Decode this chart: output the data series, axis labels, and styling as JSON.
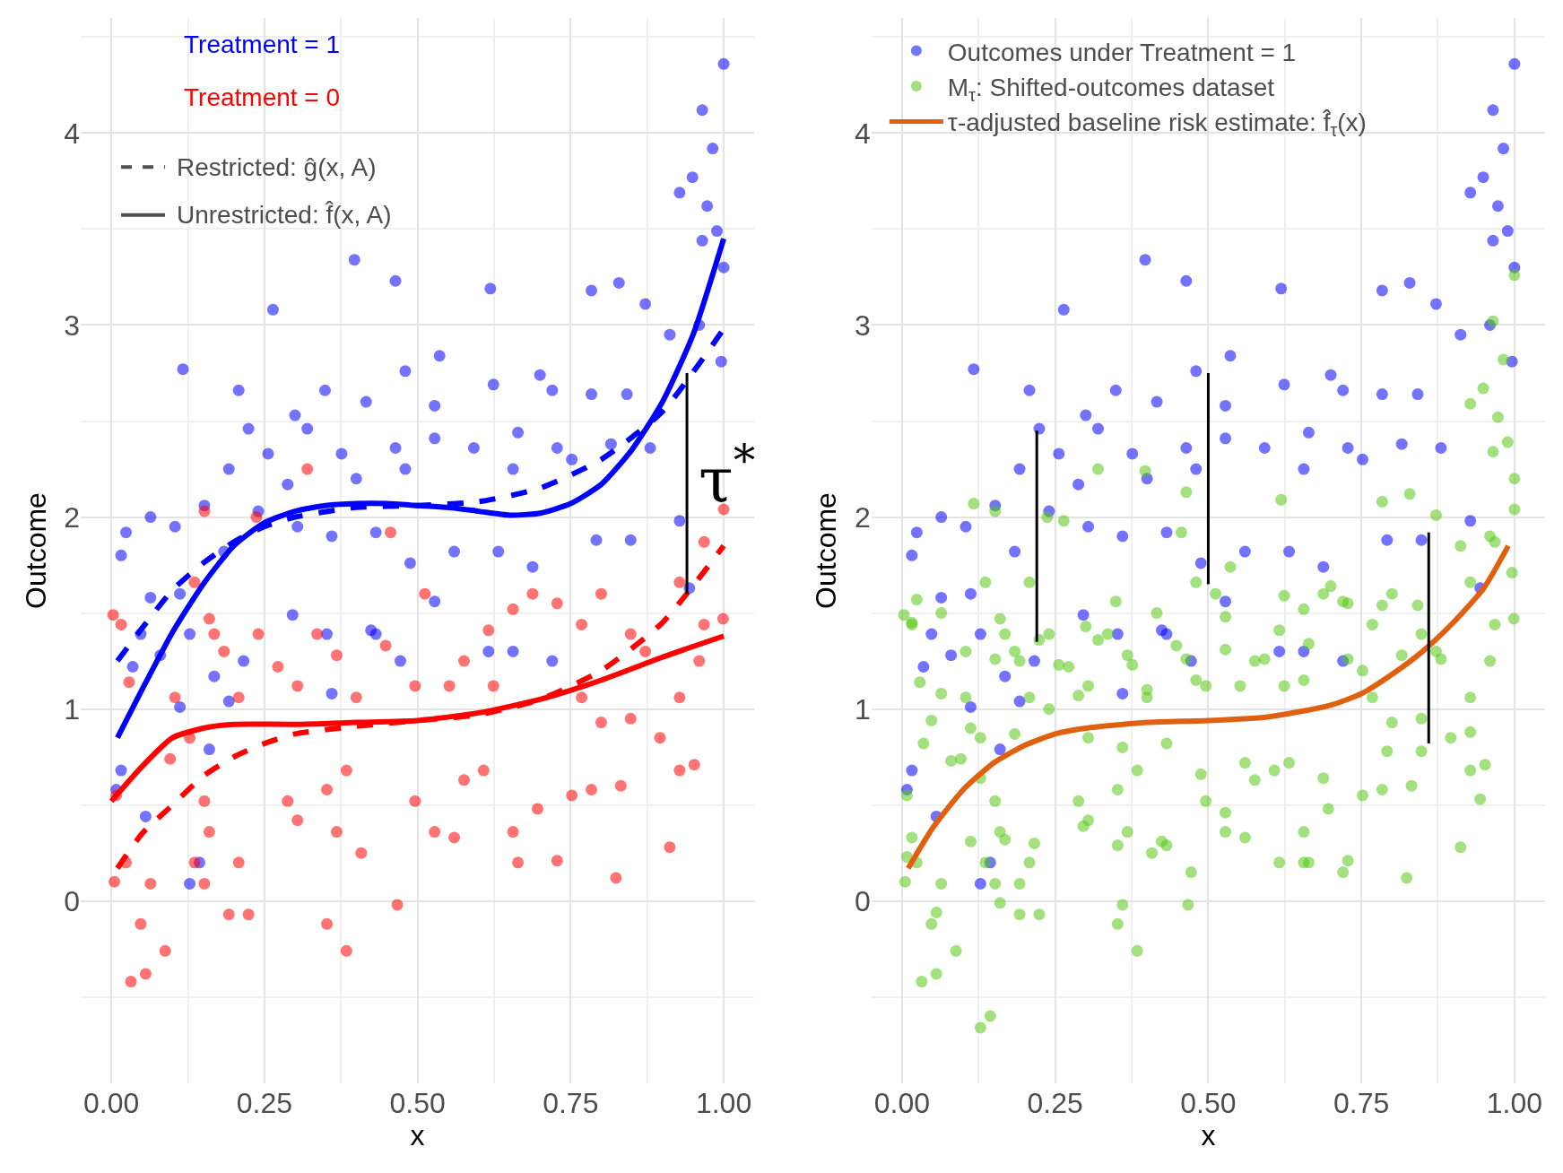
{
  "chart_data": [
    {
      "type": "scatter",
      "xlabel": "x",
      "ylabel": "Outcome",
      "xlim": [
        -0.05,
        1.05
      ],
      "ylim": [
        -0.95,
        4.6
      ],
      "xticks": [
        {
          "value": 0,
          "label": "0.00"
        },
        {
          "value": 0.25,
          "label": "0.25"
        },
        {
          "value": 0.5,
          "label": "0.50"
        },
        {
          "value": 0.75,
          "label": "0.75"
        },
        {
          "value": 1,
          "label": "1.00"
        }
      ],
      "yticks": [
        0,
        1,
        2,
        3,
        4
      ],
      "grid": true,
      "legend": false,
      "annotations": [
        "Treatment = 1",
        "Treatment = 0",
        "Restricted: ĝ(x, A)",
        "Unrestricted: f̂(x, A)",
        "τ$^{*}$"
      ],
      "series": [
        {
          "color": "#0000ff",
          "marker": "circle",
          "x": [
            1.0,
            0.965,
            0.982,
            0.928,
            0.949,
            0.973,
            0.965,
            0.989,
            1.0,
            0.397,
            0.464,
            0.619,
            0.264,
            0.872,
            0.784,
            0.829,
            0.96,
            0.996,
            0.912,
            0.208,
            0.117,
            0.48,
            0.536,
            0.624,
            0.7,
            0.3,
            0.349,
            0.416,
            0.528,
            0.72,
            0.784,
            0.842,
            0.224,
            0.256,
            0.32,
            0.376,
            0.464,
            0.528,
            0.592,
            0.664,
            0.728,
            0.816,
            0.88,
            0.192,
            0.288,
            0.4,
            0.48,
            0.656,
            0.752,
            0.024,
            0.064,
            0.104,
            0.152,
            0.016,
            0.064,
            0.048,
            0.112,
            0.184,
            0.24,
            0.304,
            0.36,
            0.432,
            0.488,
            0.56,
            0.632,
            0.688,
            0.792,
            0.848,
            0.928,
            0.944,
            0.035,
            0.08,
            0.128,
            0.168,
            0.216,
            0.296,
            0.352,
            0.424,
            0.472,
            0.528,
            0.616,
            0.656,
            0.72,
            0.016,
            0.008,
            0.112,
            0.16,
            0.192,
            0.36,
            0.128,
            0.144,
            0.056,
            0.432
          ],
          "values": [
            4.36,
            4.12,
            3.92,
            3.69,
            3.77,
            3.62,
            3.44,
            3.49,
            3.3,
            3.34,
            3.23,
            3.19,
            3.08,
            3.11,
            3.18,
            3.22,
            3.0,
            2.81,
            2.95,
            2.66,
            2.77,
            2.76,
            2.84,
            2.69,
            2.74,
            2.53,
            2.66,
            2.6,
            2.58,
            2.66,
            2.64,
            2.64,
            2.46,
            2.33,
            2.46,
            2.33,
            2.36,
            2.41,
            2.36,
            2.44,
            2.36,
            2.38,
            2.36,
            2.25,
            2.17,
            2.2,
            2.25,
            2.25,
            2.3,
            1.92,
            2.0,
            1.95,
            2.06,
            1.8,
            1.58,
            1.39,
            1.6,
            1.82,
            2.03,
            1.95,
            1.9,
            1.92,
            1.76,
            1.82,
            1.82,
            1.74,
            1.88,
            1.88,
            1.98,
            1.63,
            1.22,
            1.28,
            1.39,
            1.17,
            1.25,
            1.49,
            1.39,
            1.41,
            1.25,
            1.56,
            1.3,
            1.3,
            1.25,
            0.68,
            0.58,
            1.01,
            0.79,
            1.04,
            1.08,
            0.09,
            0.2,
            0.44,
            1.39
          ]
        },
        {
          "color": "#ff0000",
          "marker": "circle",
          "x": [
            1.0,
            0.968,
            0.928,
            0.003,
            0.016,
            0.029,
            0.008,
            0.005,
            0.032,
            0.056,
            0.088,
            0.048,
            0.064,
            0.024,
            0.096,
            0.104,
            0.128,
            0.152,
            0.16,
            0.192,
            0.224,
            0.208,
            0.136,
            0.152,
            0.288,
            0.304,
            0.352,
            0.384,
            0.368,
            0.352,
            0.384,
            0.467,
            0.408,
            0.496,
            0.528,
            0.56,
            0.576,
            0.608,
            0.656,
            0.664,
            0.696,
            0.728,
            0.752,
            0.784,
            0.832,
            0.824,
            0.912,
            0.928,
            0.952,
            0.896,
            0.928,
            0.968,
            0.999,
            0.96,
            0.872,
            0.848,
            0.8,
            0.768,
            0.728,
            0.688,
            0.656,
            0.616,
            0.576,
            0.552,
            0.496,
            0.448,
            0.4,
            0.368,
            0.336,
            0.304,
            0.272,
            0.24,
            0.208,
            0.184,
            0.16,
            0.136,
            0.152,
            0.32,
            0.168,
            0.512,
            0.768,
            0.624,
            0.8,
            0.848,
            0.456,
            0.237
          ],
          "values": [
            2.04,
            1.87,
            1.66,
            1.49,
            1.44,
            1.14,
            0.55,
            0.1,
            -0.42,
            -0.38,
            -0.26,
            -0.12,
            0.09,
            0.2,
            0.74,
            1.06,
            0.85,
            0.52,
            0.36,
            -0.07,
            -0.07,
            0.2,
            0.2,
            0.09,
            0.52,
            0.42,
            0.58,
            0.68,
            0.36,
            -0.12,
            -0.26,
            -0.02,
            0.25,
            0.52,
            0.36,
            0.33,
            0.63,
            0.68,
            0.36,
            0.2,
            0.48,
            0.21,
            0.55,
            0.58,
            0.6,
            0.12,
            0.28,
            0.68,
            0.71,
            0.85,
            1.06,
            1.44,
            1.47,
            1.25,
            1.3,
            1.39,
            1.6,
            1.44,
            1.55,
            1.6,
            1.52,
            1.41,
            1.25,
            1.12,
            1.12,
            1.33,
            1.06,
            1.28,
            1.39,
            1.12,
            1.22,
            1.39,
            1.06,
            1.3,
            1.47,
            1.66,
            2.03,
            2.25,
            1.39,
            1.6,
            1.06,
            1.12,
            0.93,
            0.95,
            1.92,
            2.0
          ]
        },
        {
          "type": "line",
          "color": "#0000ff",
          "line_style": "solid",
          "x": [
            0.01,
            0.05,
            0.1,
            0.15,
            0.2,
            0.25,
            0.3,
            0.35,
            0.4,
            0.45,
            0.5,
            0.55,
            0.6,
            0.65,
            0.7,
            0.75,
            0.8,
            0.85,
            0.9,
            0.95,
            1.0
          ],
          "values": [
            0.85,
            1.1,
            1.4,
            1.65,
            1.85,
            1.97,
            2.03,
            2.06,
            2.07,
            2.07,
            2.06,
            2.05,
            2.03,
            2.01,
            2.02,
            2.07,
            2.17,
            2.35,
            2.6,
            2.95,
            3.45
          ]
        },
        {
          "type": "line",
          "color": "#0000ff",
          "line_style": "dashed",
          "x": [
            0.01,
            0.05,
            0.1,
            0.15,
            0.2,
            0.25,
            0.3,
            0.4,
            0.5,
            0.6,
            0.7,
            0.8,
            0.9,
            1.0
          ],
          "values": [
            1.25,
            1.42,
            1.62,
            1.76,
            1.87,
            1.95,
            2.0,
            2.05,
            2.06,
            2.08,
            2.15,
            2.3,
            2.55,
            2.98
          ]
        },
        {
          "type": "line",
          "color": "#ff0000",
          "line_style": "solid",
          "x": [
            0.0,
            0.05,
            0.1,
            0.15,
            0.2,
            0.3,
            0.4,
            0.5,
            0.6,
            0.7,
            0.8,
            0.9,
            1.0
          ],
          "values": [
            0.52,
            0.7,
            0.85,
            0.9,
            0.92,
            0.92,
            0.93,
            0.94,
            0.98,
            1.05,
            1.15,
            1.27,
            1.38
          ]
        },
        {
          "type": "line",
          "color": "#ff0000",
          "line_style": "dashed",
          "x": [
            0.01,
            0.05,
            0.1,
            0.15,
            0.2,
            0.25,
            0.3,
            0.4,
            0.5,
            0.6,
            0.7,
            0.8,
            0.9,
            1.0
          ],
          "values": [
            0.17,
            0.35,
            0.5,
            0.65,
            0.75,
            0.82,
            0.87,
            0.91,
            0.94,
            0.97,
            1.05,
            1.2,
            1.45,
            1.85
          ]
        },
        {
          "type": "line",
          "color": "#000000",
          "line_style": "solid",
          "x": [
            0.94,
            0.94,
            0.94
          ],
          "values": [
            2.75,
            2.2,
            1.6
          ]
        }
      ]
    },
    {
      "type": "scatter",
      "xlabel": "x",
      "ylabel": "Outcome",
      "xlim": [
        -0.05,
        1.05
      ],
      "ylim": [
        -0.95,
        4.6
      ],
      "xticks": [
        {
          "value": 0,
          "label": "0.00"
        },
        {
          "value": 0.25,
          "label": "0.25"
        },
        {
          "value": 0.5,
          "label": "0.50"
        },
        {
          "value": 0.75,
          "label": "0.75"
        },
        {
          "value": 1,
          "label": "1.00"
        }
      ],
      "yticks": [
        0,
        1,
        2,
        3,
        4
      ],
      "grid": true,
      "legend": "top left",
      "series": [
        {
          "name": "Outcomes under Treatment = 1",
          "color": "#0000ff",
          "marker": "circle",
          "x": [
            1.0,
            0.965,
            0.982,
            0.928,
            0.949,
            0.973,
            0.965,
            0.989,
            1.0,
            0.397,
            0.464,
            0.619,
            0.264,
            0.872,
            0.784,
            0.829,
            0.96,
            0.996,
            0.912,
            0.208,
            0.117,
            0.48,
            0.536,
            0.624,
            0.7,
            0.3,
            0.349,
            0.416,
            0.528,
            0.72,
            0.784,
            0.842,
            0.224,
            0.256,
            0.32,
            0.376,
            0.464,
            0.528,
            0.592,
            0.664,
            0.728,
            0.816,
            0.88,
            0.192,
            0.288,
            0.4,
            0.48,
            0.656,
            0.752,
            0.024,
            0.064,
            0.104,
            0.152,
            0.016,
            0.064,
            0.048,
            0.112,
            0.184,
            0.24,
            0.304,
            0.36,
            0.432,
            0.488,
            0.56,
            0.632,
            0.688,
            0.792,
            0.848,
            0.928,
            0.944,
            0.035,
            0.08,
            0.128,
            0.168,
            0.216,
            0.296,
            0.352,
            0.424,
            0.472,
            0.528,
            0.616,
            0.656,
            0.72,
            0.016,
            0.008,
            0.112,
            0.16,
            0.192,
            0.36,
            0.128,
            0.144,
            0.056,
            0.432
          ],
          "values": [
            4.36,
            4.12,
            3.92,
            3.69,
            3.77,
            3.62,
            3.44,
            3.49,
            3.3,
            3.34,
            3.23,
            3.19,
            3.08,
            3.11,
            3.18,
            3.22,
            3.0,
            2.81,
            2.95,
            2.66,
            2.77,
            2.76,
            2.84,
            2.69,
            2.74,
            2.53,
            2.66,
            2.6,
            2.58,
            2.66,
            2.64,
            2.64,
            2.46,
            2.33,
            2.46,
            2.33,
            2.36,
            2.41,
            2.36,
            2.44,
            2.36,
            2.38,
            2.36,
            2.25,
            2.17,
            2.2,
            2.25,
            2.25,
            2.3,
            1.92,
            2.0,
            1.95,
            2.06,
            1.8,
            1.58,
            1.39,
            1.6,
            1.82,
            2.03,
            1.95,
            1.9,
            1.92,
            1.76,
            1.82,
            1.82,
            1.74,
            1.88,
            1.88,
            1.98,
            1.63,
            1.22,
            1.28,
            1.39,
            1.17,
            1.25,
            1.49,
            1.39,
            1.41,
            1.25,
            1.56,
            1.3,
            1.3,
            1.25,
            0.68,
            0.58,
            1.01,
            0.79,
            1.04,
            1.08,
            0.09,
            0.2,
            0.44,
            1.39
          ]
        },
        {
          "name": "M$_{τ}$: Shifted-outcomes dataset",
          "color": "#55c814",
          "marker": "circle",
          "x": [
            1.0,
            0.968,
            0.928,
            0.003,
            0.016,
            0.029,
            0.008,
            0.005,
            0.032,
            0.056,
            0.088,
            0.048,
            0.064,
            0.024,
            0.096,
            0.104,
            0.128,
            0.152,
            0.16,
            0.192,
            0.224,
            0.208,
            0.136,
            0.152,
            0.288,
            0.304,
            0.352,
            0.384,
            0.368,
            0.352,
            0.384,
            0.467,
            0.408,
            0.496,
            0.528,
            0.56,
            0.576,
            0.608,
            0.656,
            0.664,
            0.696,
            0.728,
            0.752,
            0.784,
            0.832,
            0.824,
            0.912,
            0.928,
            0.952,
            0.896,
            0.928,
            0.968,
            0.999,
            0.96,
            0.872,
            0.848,
            0.8,
            0.768,
            0.728,
            0.688,
            0.656,
            0.616,
            0.576,
            0.552,
            0.496,
            0.448,
            0.4,
            0.368,
            0.336,
            0.304,
            0.272,
            0.24,
            0.208,
            0.184,
            0.16,
            0.136,
            0.152,
            0.32,
            0.168,
            0.512,
            0.768,
            0.624,
            0.8,
            0.848,
            0.456,
            0.237,
            1.0,
            0.965,
            0.982,
            0.928,
            0.949,
            0.973,
            0.965,
            0.989,
            1.0,
            0.397,
            0.464,
            0.619,
            0.264,
            0.872,
            0.784,
            0.829,
            0.96,
            0.996,
            0.912,
            0.208,
            0.117,
            0.48,
            0.536,
            0.624,
            0.7,
            0.3,
            0.349,
            0.416,
            0.528,
            0.72,
            0.784,
            0.842,
            0.224,
            0.256,
            0.32,
            0.376,
            0.464,
            0.528,
            0.592,
            0.664,
            0.728,
            0.816,
            0.88,
            0.192,
            0.288,
            0.4,
            0.48,
            0.656,
            0.752,
            0.024,
            0.064,
            0.104,
            0.152,
            0.016,
            0.064,
            0.048,
            0.112,
            0.184,
            0.24,
            0.304,
            0.36,
            0.432,
            0.488,
            0.56,
            0.632,
            0.688,
            0.792,
            0.848,
            0.928,
            0.944,
            0.035,
            0.08,
            0.128,
            0.168,
            0.216,
            0.296,
            0.352,
            0.424,
            0.472,
            0.528,
            0.616,
            0.656,
            0.72,
            0.016,
            0.008,
            0.112,
            0.16,
            0.192,
            0.36,
            0.128,
            0.144,
            0.056,
            0.432
          ],
          "values": [
            2.04,
            1.87,
            1.66,
            1.49,
            1.44,
            1.14,
            0.55,
            0.1,
            -0.42,
            -0.38,
            -0.26,
            -0.12,
            0.09,
            0.2,
            0.74,
            1.06,
            0.85,
            0.52,
            0.36,
            -0.07,
            -0.07,
            0.2,
            0.2,
            0.09,
            0.52,
            0.42,
            0.58,
            0.68,
            0.36,
            -0.12,
            -0.26,
            -0.02,
            0.25,
            0.52,
            0.36,
            0.33,
            0.63,
            0.68,
            0.36,
            0.2,
            0.48,
            0.21,
            0.55,
            0.58,
            0.6,
            0.12,
            0.28,
            0.68,
            0.71,
            0.85,
            1.06,
            1.44,
            1.47,
            1.25,
            1.3,
            1.39,
            1.6,
            1.44,
            1.55,
            1.6,
            1.52,
            1.41,
            1.25,
            1.12,
            1.12,
            1.33,
            1.06,
            1.28,
            1.39,
            1.12,
            1.22,
            1.39,
            1.06,
            1.3,
            1.47,
            1.66,
            2.03,
            2.25,
            1.39,
            1.6,
            1.06,
            1.12,
            0.93,
            0.95,
            1.92,
            2.0,
            3.26,
            3.02,
            2.82,
            2.59,
            2.67,
            2.52,
            2.34,
            2.39,
            2.2,
            2.24,
            2.13,
            2.09,
            1.98,
            2.01,
            2.08,
            2.12,
            1.9,
            1.71,
            1.85,
            1.66,
            2.07,
            1.66,
            1.74,
            1.59,
            1.64,
            1.43,
            1.56,
            1.5,
            1.48,
            1.56,
            1.54,
            1.54,
            1.36,
            1.23,
            1.36,
            1.23,
            1.26,
            1.31,
            1.26,
            1.34,
            1.26,
            1.28,
            1.26,
            1.25,
            1.07,
            1.1,
            1.15,
            1.15,
            1.2,
            1.57,
            1.5,
            1.3,
            1.26,
            1.45,
            1.08,
            0.94,
            0.9,
            0.87,
            1.0,
            0.85,
            0.8,
            0.82,
            0.66,
            0.72,
            0.72,
            0.64,
            0.78,
            0.78,
            0.88,
            0.53,
            0.82,
            0.73,
            0.64,
            0.32,
            0.3,
            0.39,
            0.29,
            0.31,
            0.15,
            0.46,
            0.2,
            0.2,
            0.15,
            0.33,
            0.23,
            0.31,
            -0.01,
            0.09,
            -0.02,
            -0.66,
            -0.6,
            -0.06,
            0.29
          ]
        },
        {
          "type": "line",
          "name": "τ-adjusted baseline risk estimate: f̂$_{τ}$(x)",
          "color": "#e06010",
          "line_style": "solid",
          "x": [
            0.01,
            0.05,
            0.1,
            0.15,
            0.2,
            0.25,
            0.3,
            0.4,
            0.5,
            0.6,
            0.7,
            0.75,
            0.8,
            0.85,
            0.9,
            0.95,
            0.99
          ],
          "values": [
            0.17,
            0.38,
            0.58,
            0.72,
            0.81,
            0.87,
            0.9,
            0.93,
            0.94,
            0.96,
            1.02,
            1.08,
            1.18,
            1.3,
            1.45,
            1.63,
            1.85
          ]
        },
        {
          "type": "line",
          "color": "#000000",
          "line_style": "solid",
          "x": [
            0.22,
            0.22
          ],
          "values": [
            2.45,
            1.35
          ]
        },
        {
          "type": "line",
          "color": "#000000",
          "line_style": "solid",
          "x": [
            0.5,
            0.5
          ],
          "values": [
            2.75,
            1.65
          ]
        },
        {
          "type": "line",
          "color": "#000000",
          "line_style": "solid",
          "x": [
            0.86,
            0.86
          ],
          "values": [
            1.92,
            0.82
          ]
        }
      ]
    }
  ]
}
